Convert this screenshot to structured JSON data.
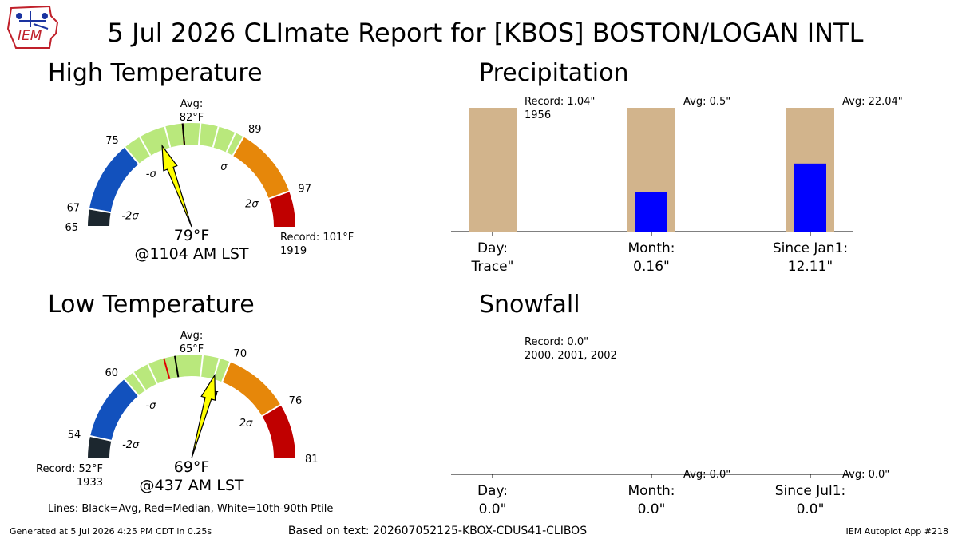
{
  "title": "5 Jul 2026 CLImate Report for [KBOS] BOSTON/LOGAN INTL",
  "logo_text": "IEM",
  "footer": {
    "left": "Generated at 5 Jul 2026 4:25 PM CDT in 0.25s",
    "center": "Based on text: 202607052125-KBOX-CDUS41-CLIBOS",
    "right": "IEM Autoplot App #218"
  },
  "lines_note": "Lines: Black=Avg, Red=Median, White=10th-90th Ptile",
  "colors": {
    "green": "#b9e87c",
    "orange": "#e6870a",
    "red": "#c00000",
    "blue": "#1251bd",
    "dark": "#1c272f",
    "tan": "#d2b48c",
    "obs_bar": "#0000ff",
    "needle": "#ffff00"
  },
  "chart_data": [
    {
      "type": "gauge",
      "title": "High Temperature",
      "range": [
        65,
        101
      ],
      "ticks": [
        {
          "value": 65,
          "label": "65"
        },
        {
          "value": 67,
          "label": "67"
        },
        {
          "value": 75,
          "label": "75"
        },
        {
          "value": 89,
          "label": "89"
        },
        {
          "value": 97,
          "label": "97"
        }
      ],
      "sigma_labels": [
        {
          "value": 67,
          "label": "-2σ"
        },
        {
          "value": 75,
          "label": "-σ"
        },
        {
          "value": 89,
          "label": "σ"
        },
        {
          "value": 97,
          "label": "2σ"
        }
      ],
      "bands": [
        {
          "from": 65,
          "to": 67,
          "color": "dark"
        },
        {
          "from": 67,
          "to": 75,
          "color": "blue"
        },
        {
          "from": 75,
          "to": 89,
          "color": "green"
        },
        {
          "from": 89,
          "to": 97,
          "color": "orange"
        },
        {
          "from": 97,
          "to": 101,
          "color": "red"
        }
      ],
      "avg": 82,
      "median": 82,
      "percentile_lines": [
        77,
        80,
        84,
        86,
        88
      ],
      "avg_label": "Avg:",
      "avg_value_label": "82°F",
      "observed": 79,
      "observed_label": "79°F",
      "time_label": "@1104 AM LST",
      "record_label": "Record: 101°F",
      "record_year": "1919",
      "record_side": "right"
    },
    {
      "type": "gauge",
      "title": "Low Temperature",
      "range": [
        52,
        81
      ],
      "ticks": [
        {
          "value": 54,
          "label": "54"
        },
        {
          "value": 60,
          "label": "60"
        },
        {
          "value": 70,
          "label": "70"
        },
        {
          "value": 76,
          "label": "76"
        },
        {
          "value": 81,
          "label": "81"
        }
      ],
      "sigma_labels": [
        {
          "value": 54,
          "label": "-2σ"
        },
        {
          "value": 60,
          "label": "-σ"
        },
        {
          "value": 70,
          "label": "σ"
        },
        {
          "value": 76,
          "label": "2σ"
        }
      ],
      "bands": [
        {
          "from": 52,
          "to": 54,
          "color": "dark"
        },
        {
          "from": 54,
          "to": 60,
          "color": "blue"
        },
        {
          "from": 60,
          "to": 70,
          "color": "green"
        },
        {
          "from": 70,
          "to": 76,
          "color": "orange"
        },
        {
          "from": 76,
          "to": 81,
          "color": "red"
        }
      ],
      "avg": 65,
      "median": 64,
      "percentile_lines": [
        61,
        62.5,
        67.5,
        69
      ],
      "avg_label": "Avg:",
      "avg_value_label": "65°F",
      "observed": 69,
      "observed_label": "69°F",
      "time_label": "@437 AM LST",
      "record_label": "Record: 52°F",
      "record_year": "1933",
      "record_side": "left"
    },
    {
      "type": "bar",
      "title": "Precipitation",
      "categories": [
        {
          "name": "Day:",
          "value_label": "Trace\""
        },
        {
          "name": "Month:",
          "value_label": "0.16\""
        },
        {
          "name": "Since Jan1:",
          "value_label": "12.11\""
        }
      ],
      "observed": [
        0,
        0.16,
        12.11
      ],
      "reference": [
        1.04,
        0.5,
        22.04
      ],
      "annotations": [
        {
          "text": "Record: 1.04\"",
          "sub": "1956"
        },
        {
          "text": "Avg: 0.5\"",
          "sub": ""
        },
        {
          "text": "Avg: 22.04\"",
          "sub": ""
        }
      ]
    },
    {
      "type": "bar",
      "title": "Snowfall",
      "categories": [
        {
          "name": "Day:",
          "value_label": "0.0\""
        },
        {
          "name": "Month:",
          "value_label": "0.0\""
        },
        {
          "name": "Since Jul1:",
          "value_label": "0.0\""
        }
      ],
      "observed": [
        0,
        0,
        0
      ],
      "reference": [
        0,
        0,
        0
      ],
      "annotations": [
        {
          "text": "Record: 0.0\"",
          "sub": "2000, 2001, 2002"
        },
        {
          "text": "Avg: 0.0\"",
          "sub": ""
        },
        {
          "text": "Avg: 0.0\"",
          "sub": ""
        }
      ]
    }
  ]
}
